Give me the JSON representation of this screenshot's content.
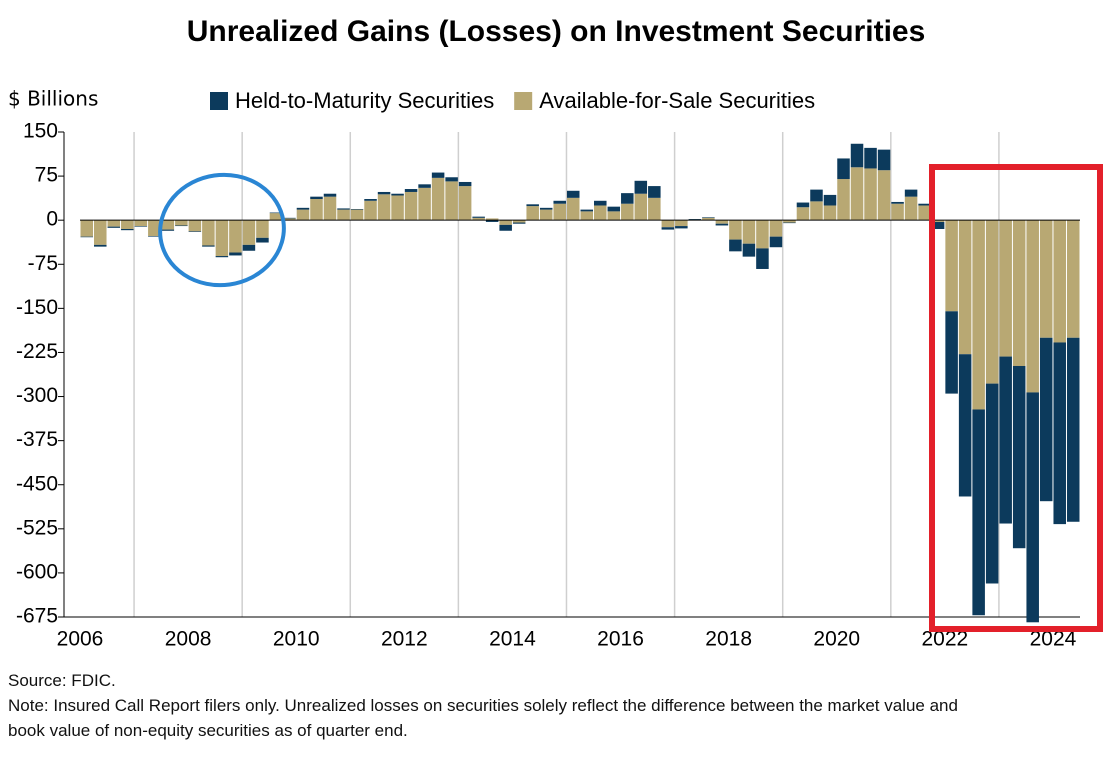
{
  "chart_data": {
    "type": "stacked_bar",
    "title": "Unrealized Gains (Losses) on Investment Securities",
    "ylabel": "$ Billions",
    "source": "Source: FDIC.",
    "note": "Note: Insured Call Report filers only. Unrealized losses on securities solely reflect the difference between the market value and book value of non-equity securities as of quarter end.",
    "categories": [
      "2006",
      null,
      null,
      null,
      null,
      null,
      null,
      null,
      "2008",
      null,
      null,
      null,
      null,
      null,
      null,
      null,
      "2010",
      null,
      null,
      null,
      null,
      null,
      null,
      null,
      "2012",
      null,
      null,
      null,
      null,
      null,
      null,
      null,
      "2014",
      null,
      null,
      null,
      null,
      null,
      null,
      null,
      "2016",
      null,
      null,
      null,
      null,
      null,
      null,
      null,
      "2018",
      null,
      null,
      null,
      null,
      null,
      null,
      null,
      "2020",
      null,
      null,
      null,
      null,
      null,
      null,
      null,
      "2022",
      null,
      null,
      null,
      null,
      null,
      null,
      null,
      "2024",
      null
    ],
    "series": [
      {
        "name": "Held-to-Maturity Securities",
        "color": "#0c3a5c",
        "values": [
          -1,
          -3,
          -2,
          -2,
          -1,
          -1,
          -2,
          -1,
          -1,
          -2,
          -2,
          -5,
          -10,
          -8,
          1,
          1,
          3,
          4,
          5,
          2,
          1,
          3,
          4,
          3,
          5,
          6,
          9,
          7,
          7,
          2,
          -3,
          -10,
          -2,
          3,
          3,
          5,
          12,
          3,
          8,
          8,
          18,
          22,
          20,
          -4,
          -4,
          1,
          1,
          -3,
          -20,
          -22,
          -35,
          -18,
          -1,
          8,
          20,
          18,
          35,
          40,
          35,
          35,
          3,
          12,
          3,
          -12,
          -140,
          -242,
          -350,
          -340,
          -284,
          -310,
          -391,
          -278,
          -309,
          -313
        ]
      },
      {
        "name": "Available-for-Sale Securities",
        "color": "#b8a873",
        "values": [
          -28,
          -42,
          -11,
          -15,
          -10,
          -27,
          -16,
          -9,
          -19,
          -43,
          -61,
          -55,
          -42,
          -30,
          12,
          3,
          18,
          36,
          40,
          18,
          18,
          33,
          44,
          42,
          48,
          55,
          72,
          66,
          58,
          4,
          3,
          -8,
          -4,
          24,
          18,
          28,
          38,
          15,
          25,
          15,
          28,
          45,
          38,
          -12,
          -10,
          1,
          4,
          -6,
          -33,
          -40,
          -48,
          -28,
          -4,
          22,
          32,
          25,
          70,
          90,
          88,
          85,
          28,
          40,
          25,
          -3,
          -155,
          -228,
          -322,
          -278,
          -232,
          -248,
          -293,
          -200,
          -208,
          -200
        ]
      }
    ],
    "ylim": [
      -675,
      150
    ],
    "yticks": [
      150,
      75,
      0,
      -75,
      -150,
      -225,
      -300,
      -375,
      -450,
      -525,
      -600,
      -675
    ],
    "legend": "top"
  }
}
